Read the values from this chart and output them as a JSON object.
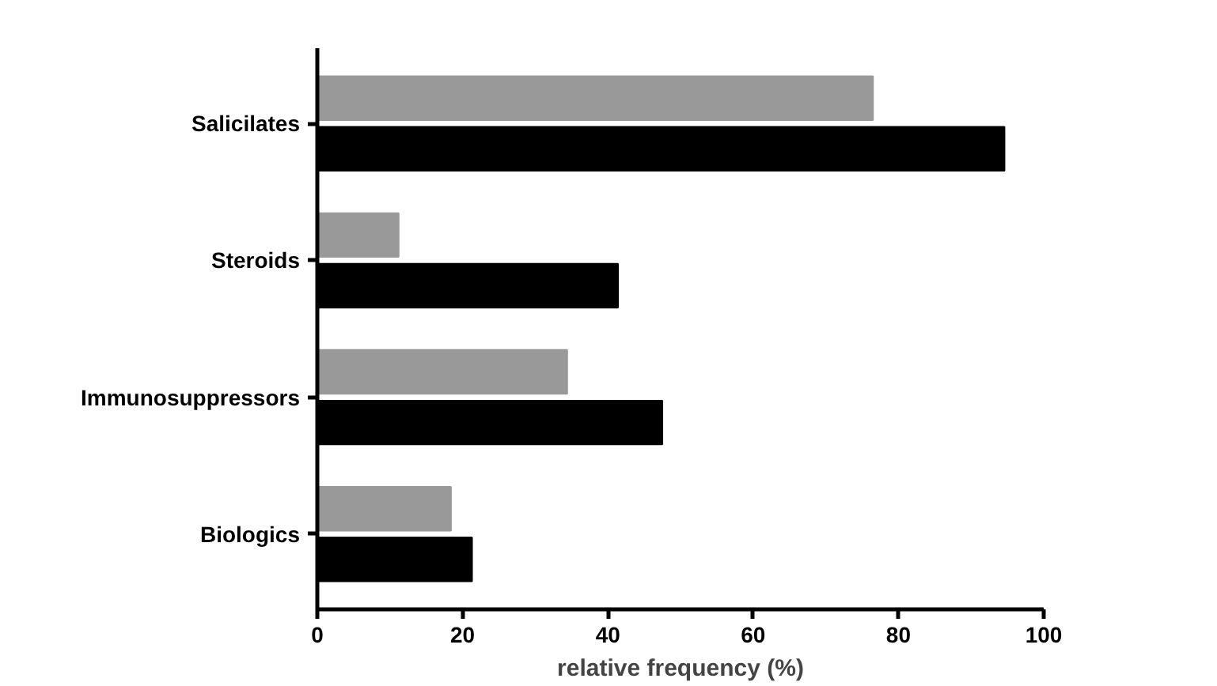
{
  "chart_data": {
    "type": "bar",
    "orientation": "horizontal",
    "categories": [
      "Salicilates",
      "Steroids",
      "Immunosuppressors",
      "Biologics"
    ],
    "series": [
      {
        "color": "#999999",
        "values": [
          76.5,
          11.2,
          34.4,
          18.4
        ]
      },
      {
        "color": "#000000",
        "values": [
          94.6,
          41.4,
          47.5,
          21.3
        ]
      }
    ],
    "xlabel": "relative frequency (%)",
    "xlim": [
      0,
      100
    ],
    "xticks": [
      0,
      20,
      40,
      60,
      80,
      100
    ],
    "grid": false
  }
}
